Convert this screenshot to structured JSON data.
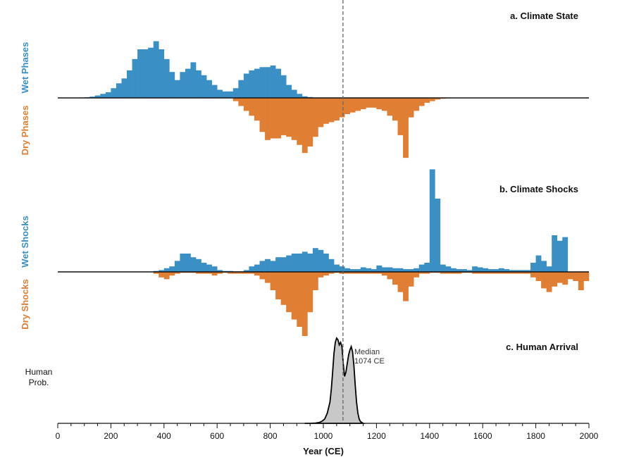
{
  "colors": {
    "wet": "#3a8fc5",
    "dry": "#e07e34",
    "density_fill": "#c8c8c8",
    "axis": "#111111",
    "median_line": "#666666"
  },
  "chart_data": [
    {
      "type": "bar",
      "title": "a. Climate State",
      "positive_label": "Wet Phases",
      "negative_label": "Dry Phases",
      "bin_width": 20,
      "x_start": [
        100,
        120,
        140,
        160,
        180,
        200,
        220,
        240,
        260,
        280,
        300,
        320,
        340,
        360,
        380,
        400,
        420,
        440,
        460,
        480,
        500,
        520,
        540,
        560,
        580,
        600,
        620,
        640,
        660,
        680,
        700,
        720,
        740,
        760,
        780,
        800,
        820,
        840,
        860,
        880,
        900,
        920,
        940,
        960,
        980,
        1000,
        1020,
        1040,
        1060,
        1080,
        1100,
        1120,
        1140,
        1160,
        1180,
        1200,
        1220,
        1240,
        1260,
        1280,
        1300,
        1320,
        1340,
        1360,
        1380,
        1400,
        1420,
        1440,
        1460,
        1480,
        1500,
        1520,
        1540,
        1560,
        1580,
        1600,
        1620,
        1640,
        1660,
        1680,
        1700,
        1720,
        1740,
        1760,
        1780,
        1800,
        1820,
        1840,
        1860,
        1880,
        1900,
        1920,
        1940,
        1960,
        1980
      ],
      "series": [
        {
          "name": "Wet Phases",
          "values": [
            0.4,
            0.8,
            1.5,
            2.5,
            3.5,
            6,
            9,
            12,
            17,
            24,
            30,
            30,
            31,
            35,
            30,
            24,
            16,
            11,
            16,
            18,
            22,
            17,
            14,
            11,
            8,
            5,
            4,
            4,
            6,
            11,
            15,
            17,
            18,
            19,
            19,
            20,
            18,
            14,
            8,
            5,
            2.5,
            1,
            0.5,
            0,
            0,
            0,
            0,
            0,
            0,
            0,
            0,
            0,
            0,
            0,
            0,
            0,
            0,
            0,
            0,
            0,
            0,
            0,
            0,
            0,
            0,
            0,
            0,
            0,
            0,
            0,
            0,
            0,
            0,
            0,
            0,
            0,
            0,
            0,
            0,
            0,
            0,
            0,
            0,
            0,
            0,
            0,
            0,
            0,
            0,
            0,
            0,
            0,
            0,
            0,
            0
          ]
        },
        {
          "name": "Dry Phases",
          "values": [
            0,
            0,
            0,
            0,
            0,
            0,
            0,
            0,
            0,
            0,
            0,
            0,
            0,
            0,
            0,
            0,
            0,
            0,
            0,
            0,
            0,
            0,
            0,
            0,
            0,
            0,
            0,
            0,
            -2,
            -5,
            -8,
            -11,
            -14,
            -21,
            -26,
            -25,
            -25,
            -23,
            -24,
            -26,
            -29,
            -34,
            -30,
            -24,
            -18,
            -16,
            -15,
            -14,
            -12,
            -10,
            -9,
            -8,
            -7,
            -6,
            -6,
            -7,
            -8,
            -11,
            -14,
            -23,
            -37,
            -12,
            -8,
            -5,
            -3,
            -2,
            -1,
            -0.5,
            -0.3,
            -0.2,
            -0.1,
            -0.1,
            -0.1,
            -0.1,
            -0.1,
            -0.1,
            -0.1,
            -0.1,
            -0.1,
            -0.1,
            -0.1,
            -0.1,
            -0.1,
            -0.1,
            -0.1,
            -0.1,
            -0.1,
            -0.1,
            -0.1,
            -0.1,
            -0.1,
            -0.1,
            -0.1,
            -0.1,
            -0.1
          ]
        }
      ]
    },
    {
      "type": "bar",
      "title": "b. Climate Shocks",
      "positive_label": "Wet Shocks",
      "negative_label": "Dry Shocks",
      "bin_width": 20,
      "x_start": [
        360,
        380,
        400,
        420,
        440,
        460,
        480,
        500,
        520,
        540,
        560,
        580,
        600,
        620,
        640,
        660,
        680,
        700,
        720,
        740,
        760,
        780,
        800,
        820,
        840,
        860,
        880,
        900,
        920,
        940,
        960,
        980,
        1000,
        1020,
        1040,
        1060,
        1080,
        1100,
        1120,
        1140,
        1160,
        1180,
        1200,
        1220,
        1240,
        1260,
        1280,
        1300,
        1320,
        1340,
        1360,
        1380,
        1400,
        1420,
        1440,
        1460,
        1480,
        1500,
        1520,
        1540,
        1560,
        1580,
        1600,
        1620,
        1640,
        1660,
        1680,
        1700,
        1720,
        1740,
        1760,
        1780,
        1800,
        1820,
        1840,
        1860,
        1880,
        1900,
        1920,
        1940,
        1960,
        1980
      ],
      "series": [
        {
          "name": "Wet Shocks",
          "values": [
            0.5,
            1,
            2,
            3,
            6,
            10,
            10,
            8,
            7,
            5,
            4,
            3,
            1,
            0.5,
            0.5,
            0.3,
            0.3,
            1,
            3,
            4,
            6,
            7,
            6,
            8,
            8,
            9,
            10,
            10,
            11,
            10,
            13,
            12,
            10,
            7,
            4,
            3,
            2,
            1.5,
            1.5,
            2.5,
            2,
            1.5,
            3.5,
            2.5,
            2.5,
            2,
            2,
            1.5,
            1.5,
            2,
            4,
            5,
            56,
            40,
            4,
            3,
            2,
            1.5,
            1.5,
            1,
            3,
            2.5,
            2,
            1.5,
            1.5,
            2,
            1.5,
            1,
            1,
            1,
            1,
            5,
            9,
            6,
            3,
            20,
            17,
            19,
            0,
            0,
            0,
            0
          ]
        },
        {
          "name": "Dry Shocks",
          "values": [
            -1,
            -3,
            -4,
            -2,
            -1,
            -0.5,
            -0.5,
            -0.5,
            -1,
            -1,
            -1,
            -2,
            -1,
            -0.5,
            -1,
            -1,
            -1,
            -1,
            -1,
            -2,
            -4,
            -6,
            -10,
            -15,
            -18,
            -22,
            -26,
            -30,
            -35,
            -22,
            -10,
            -3,
            -2,
            -1,
            -0.5,
            -1,
            -1,
            -1,
            -1,
            -1,
            -1,
            -1,
            -1,
            -2,
            -4,
            -7,
            -11,
            -16,
            -8,
            -3,
            -1,
            -1,
            -0.5,
            -0.5,
            -1,
            -1,
            -1,
            -1,
            -0.5,
            -0.5,
            -1,
            -1,
            -1,
            -1,
            -1,
            -1,
            -1,
            -1,
            -1,
            -1,
            -1,
            -3,
            -5,
            -9,
            -11,
            -8,
            -6,
            -7,
            -4,
            -5,
            -10,
            -5
          ]
        }
      ]
    },
    {
      "type": "area",
      "title": "c. Human Arrival",
      "ylabel": "Human Prob.",
      "x": [
        930,
        950,
        970,
        985,
        995,
        1005,
        1015,
        1025,
        1030,
        1035,
        1040,
        1045,
        1050,
        1055,
        1060,
        1065,
        1070,
        1075,
        1080,
        1085,
        1090,
        1095,
        1100,
        1105,
        1110,
        1115,
        1120,
        1125,
        1130,
        1135,
        1140,
        1150
      ],
      "values": [
        0,
        0,
        0.3,
        1,
        2.5,
        5,
        12,
        25,
        40,
        60,
        82,
        95,
        100,
        98,
        92,
        95,
        90,
        70,
        55,
        60,
        70,
        80,
        86,
        90,
        84,
        68,
        45,
        25,
        12,
        5,
        2,
        0
      ],
      "median_year": 1074,
      "median_label": [
        "Median",
        "1074 CE"
      ]
    }
  ],
  "x_axis": {
    "title": "Year (CE)",
    "ticks": [
      0,
      200,
      400,
      600,
      800,
      1000,
      1200,
      1400,
      1600,
      1800,
      2000
    ],
    "tick_labels": [
      "0",
      "200",
      "400",
      "600",
      "800",
      "1000",
      "1200",
      "1400",
      "1600",
      "1800",
      "2000"
    ],
    "minor_tick_step": 50,
    "xlim": [
      0,
      2000
    ]
  }
}
